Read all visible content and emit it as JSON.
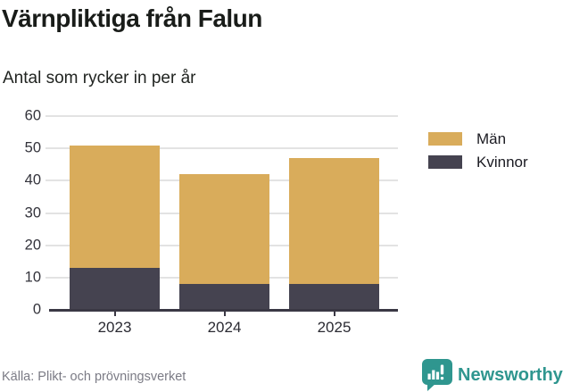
{
  "header": {
    "title": "Värnpliktiga från Falun",
    "subtitle": "Antal som rycker in per år"
  },
  "chart_data": {
    "type": "bar",
    "stacked": true,
    "title": "Värnpliktiga från Falun",
    "subtitle": "Antal som rycker in per år",
    "categories": [
      "2023",
      "2024",
      "2025"
    ],
    "series": [
      {
        "name": "Män",
        "key": "men",
        "color": "#d9ac5b",
        "values": [
          38,
          34,
          39
        ]
      },
      {
        "name": "Kvinnor",
        "key": "women",
        "color": "#454350",
        "values": [
          13,
          8,
          8
        ]
      }
    ],
    "totals": [
      51,
      42,
      47
    ],
    "xlabel": "",
    "ylabel": "",
    "ylim": [
      0,
      60
    ],
    "y_ticks": [
      0,
      10,
      20,
      30,
      40,
      50,
      60
    ],
    "grid": "horizontal",
    "legend_position": "right"
  },
  "footer": {
    "source": "Källa: Plikt- och prövningsverket",
    "brand": "Newsworthy",
    "brand_color": "#2f968f"
  }
}
